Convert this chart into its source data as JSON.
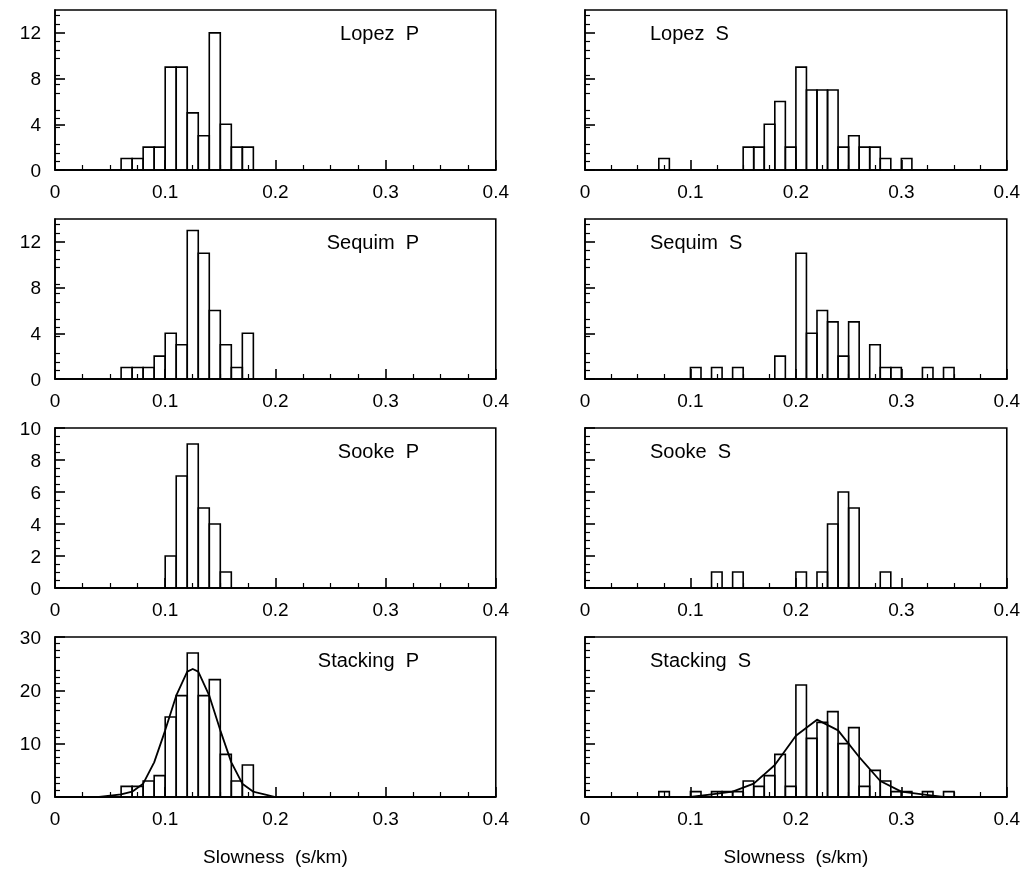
{
  "chart_data": [
    {
      "type": "histogram",
      "title": "Lopez  P",
      "color": "#000000",
      "bins": [
        0,
        0.01,
        0.02,
        0.03,
        0.04,
        0.05,
        0.06,
        0.07,
        0.08,
        0.09,
        0.1,
        0.11,
        0.12,
        0.13,
        0.14,
        0.15,
        0.16,
        0.17,
        0.18,
        0.19,
        0.2,
        0.21,
        0.22,
        0.23,
        0.24,
        0.25,
        0.26,
        0.27,
        0.28,
        0.29,
        0.3,
        0.31,
        0.32,
        0.33,
        0.34,
        0.35,
        0.36,
        0.37,
        0.38,
        0.39,
        0.4
      ],
      "values": [
        0,
        0,
        0,
        0,
        0,
        0,
        1,
        1,
        2,
        2,
        9,
        9,
        5,
        3,
        12,
        4,
        2,
        2,
        0,
        0,
        0,
        0,
        0,
        0,
        0,
        0,
        0,
        0,
        0,
        0,
        0,
        0,
        0,
        0,
        0,
        0,
        0,
        0,
        0,
        0
      ],
      "xlim": [
        0,
        0.4
      ],
      "xticks": [
        0,
        0.1,
        0.2,
        0.3,
        0.4
      ],
      "ylim": [
        0,
        14
      ],
      "yticks": [
        0,
        4,
        8,
        12
      ]
    },
    {
      "type": "histogram",
      "title": "Lopez  S",
      "color": "#000000",
      "bins": [
        0,
        0.01,
        0.02,
        0.03,
        0.04,
        0.05,
        0.06,
        0.07,
        0.08,
        0.09,
        0.1,
        0.11,
        0.12,
        0.13,
        0.14,
        0.15,
        0.16,
        0.17,
        0.18,
        0.19,
        0.2,
        0.21,
        0.22,
        0.23,
        0.24,
        0.25,
        0.26,
        0.27,
        0.28,
        0.29,
        0.3,
        0.31,
        0.32,
        0.33,
        0.34,
        0.35,
        0.36,
        0.37,
        0.38,
        0.39,
        0.4
      ],
      "values": [
        0,
        0,
        0,
        0,
        0,
        0,
        0,
        1,
        0,
        0,
        0,
        0,
        0,
        0,
        0,
        2,
        2,
        4,
        6,
        2,
        9,
        7,
        7,
        7,
        2,
        3,
        2,
        2,
        1,
        0,
        1,
        0,
        0,
        0,
        0,
        0,
        0,
        0,
        0,
        0
      ],
      "xlim": [
        0,
        0.4
      ],
      "xticks": [
        0,
        0.1,
        0.2,
        0.3,
        0.4
      ],
      "ylim": [
        0,
        14
      ],
      "yticks": [
        0,
        4,
        8,
        12
      ],
      "tick_labels": "x"
    },
    {
      "type": "histogram",
      "title": "Sequim  P",
      "color": "#000000",
      "bins": [
        0,
        0.01,
        0.02,
        0.03,
        0.04,
        0.05,
        0.06,
        0.07,
        0.08,
        0.09,
        0.1,
        0.11,
        0.12,
        0.13,
        0.14,
        0.15,
        0.16,
        0.17,
        0.18,
        0.19,
        0.2,
        0.21,
        0.22,
        0.23,
        0.24,
        0.25,
        0.26,
        0.27,
        0.28,
        0.29,
        0.3,
        0.31,
        0.32,
        0.33,
        0.34,
        0.35,
        0.36,
        0.37,
        0.38,
        0.39,
        0.4
      ],
      "values": [
        0,
        0,
        0,
        0,
        0,
        0,
        1,
        1,
        1,
        2,
        4,
        3,
        13,
        11,
        6,
        3,
        1,
        4,
        0,
        0,
        0,
        0,
        0,
        0,
        0,
        0,
        0,
        0,
        0,
        0,
        0,
        0,
        0,
        0,
        0,
        0,
        0,
        0,
        0,
        0
      ],
      "xlim": [
        0,
        0.4
      ],
      "xticks": [
        0,
        0.1,
        0.2,
        0.3,
        0.4
      ],
      "ylim": [
        0,
        14
      ],
      "yticks": [
        0,
        4,
        8,
        12
      ]
    },
    {
      "type": "histogram",
      "title": "Sequim  S",
      "color": "#000000",
      "bins": [
        0,
        0.01,
        0.02,
        0.03,
        0.04,
        0.05,
        0.06,
        0.07,
        0.08,
        0.09,
        0.1,
        0.11,
        0.12,
        0.13,
        0.14,
        0.15,
        0.16,
        0.17,
        0.18,
        0.19,
        0.2,
        0.21,
        0.22,
        0.23,
        0.24,
        0.25,
        0.26,
        0.27,
        0.28,
        0.29,
        0.3,
        0.31,
        0.32,
        0.33,
        0.34,
        0.35,
        0.36,
        0.37,
        0.38,
        0.39,
        0.4
      ],
      "values": [
        0,
        0,
        0,
        0,
        0,
        0,
        0,
        0,
        0,
        0,
        1,
        0,
        1,
        0,
        1,
        0,
        0,
        0,
        2,
        0,
        11,
        4,
        6,
        5,
        2,
        5,
        0,
        3,
        1,
        1,
        0,
        0,
        1,
        0,
        1,
        0,
        0,
        0,
        0,
        0
      ],
      "xlim": [
        0,
        0.4
      ],
      "xticks": [
        0,
        0.1,
        0.2,
        0.3,
        0.4
      ],
      "ylim": [
        0,
        14
      ],
      "yticks": [
        0,
        4,
        8,
        12
      ],
      "tick_labels": "x"
    },
    {
      "type": "histogram",
      "title": "Sooke  P",
      "color": "#000000",
      "bins": [
        0,
        0.01,
        0.02,
        0.03,
        0.04,
        0.05,
        0.06,
        0.07,
        0.08,
        0.09,
        0.1,
        0.11,
        0.12,
        0.13,
        0.14,
        0.15,
        0.16,
        0.17,
        0.18,
        0.19,
        0.2,
        0.21,
        0.22,
        0.23,
        0.24,
        0.25,
        0.26,
        0.27,
        0.28,
        0.29,
        0.3,
        0.31,
        0.32,
        0.33,
        0.34,
        0.35,
        0.36,
        0.37,
        0.38,
        0.39,
        0.4
      ],
      "values": [
        0,
        0,
        0,
        0,
        0,
        0,
        0,
        0,
        0,
        0,
        2,
        7,
        9,
        5,
        4,
        1,
        0,
        0,
        0,
        0,
        0,
        0,
        0,
        0,
        0,
        0,
        0,
        0,
        0,
        0,
        0,
        0,
        0,
        0,
        0,
        0,
        0,
        0,
        0,
        0
      ],
      "xlim": [
        0,
        0.4
      ],
      "xticks": [
        0,
        0.1,
        0.2,
        0.3,
        0.4
      ],
      "ylim": [
        0,
        10
      ],
      "yticks": [
        0,
        2,
        4,
        6,
        8,
        10
      ]
    },
    {
      "type": "histogram",
      "title": "Sooke  S",
      "color": "#000000",
      "bins": [
        0,
        0.01,
        0.02,
        0.03,
        0.04,
        0.05,
        0.06,
        0.07,
        0.08,
        0.09,
        0.1,
        0.11,
        0.12,
        0.13,
        0.14,
        0.15,
        0.16,
        0.17,
        0.18,
        0.19,
        0.2,
        0.21,
        0.22,
        0.23,
        0.24,
        0.25,
        0.26,
        0.27,
        0.28,
        0.29,
        0.3,
        0.31,
        0.32,
        0.33,
        0.34,
        0.35,
        0.36,
        0.37,
        0.38,
        0.39,
        0.4
      ],
      "values": [
        0,
        0,
        0,
        0,
        0,
        0,
        0,
        0,
        0,
        0,
        0,
        0,
        1,
        0,
        1,
        0,
        0,
        0,
        0,
        0,
        1,
        0,
        1,
        4,
        6,
        5,
        0,
        0,
        1,
        0,
        0,
        0,
        0,
        0,
        0,
        0,
        0,
        0,
        0,
        0
      ],
      "xlim": [
        0,
        0.4
      ],
      "xticks": [
        0,
        0.1,
        0.2,
        0.3,
        0.4
      ],
      "ylim": [
        0,
        10
      ],
      "yticks": [
        0,
        2,
        4,
        6,
        8,
        10
      ],
      "tick_labels": "x"
    },
    {
      "type": "histogram",
      "title": "Stacking  P",
      "xlabel": "Slowness  (s/km)",
      "color": "#000000",
      "bins": [
        0,
        0.01,
        0.02,
        0.03,
        0.04,
        0.05,
        0.06,
        0.07,
        0.08,
        0.09,
        0.1,
        0.11,
        0.12,
        0.13,
        0.14,
        0.15,
        0.16,
        0.17,
        0.18,
        0.19,
        0.2,
        0.21,
        0.22,
        0.23,
        0.24,
        0.25,
        0.26,
        0.27,
        0.28,
        0.29,
        0.3,
        0.31,
        0.32,
        0.33,
        0.34,
        0.35,
        0.36,
        0.37,
        0.38,
        0.39,
        0.4
      ],
      "series": [
        {
          "type": "histogram",
          "values": [
            0,
            0,
            0,
            0,
            0,
            0,
            2,
            2,
            3,
            4,
            15,
            19,
            27,
            19,
            22,
            8,
            3,
            6,
            0,
            0,
            0,
            0,
            0,
            0,
            0,
            0,
            0,
            0,
            0,
            0,
            0,
            0,
            0,
            0,
            0,
            0,
            0,
            0,
            0,
            0
          ]
        },
        {
          "type": "line",
          "color": "#000000",
          "x": [
            0,
            0.04,
            0.06,
            0.07,
            0.08,
            0.09,
            0.1,
            0.11,
            0.12,
            0.125,
            0.13,
            0.14,
            0.15,
            0.16,
            0.17,
            0.18,
            0.19,
            0.2,
            0.4
          ],
          "values": [
            0,
            0,
            0.5,
            1,
            2.5,
            6.5,
            12.5,
            19,
            23.5,
            24,
            23.5,
            19,
            12.5,
            6.5,
            2.5,
            1,
            0.5,
            0,
            0
          ]
        }
      ],
      "xlim": [
        0,
        0.4
      ],
      "xticks": [
        0,
        0.1,
        0.2,
        0.3,
        0.4
      ],
      "ylim": [
        0,
        30
      ],
      "yticks": [
        0,
        10,
        20,
        30
      ]
    },
    {
      "type": "histogram",
      "title": "Stacking  S",
      "xlabel": "Slowness  (s/km)",
      "color": "#000000",
      "bins": [
        0,
        0.01,
        0.02,
        0.03,
        0.04,
        0.05,
        0.06,
        0.07,
        0.08,
        0.09,
        0.1,
        0.11,
        0.12,
        0.13,
        0.14,
        0.15,
        0.16,
        0.17,
        0.18,
        0.19,
        0.2,
        0.21,
        0.22,
        0.23,
        0.24,
        0.25,
        0.26,
        0.27,
        0.28,
        0.29,
        0.3,
        0.31,
        0.32,
        0.33,
        0.34,
        0.35,
        0.36,
        0.37,
        0.38,
        0.39,
        0.4
      ],
      "series": [
        {
          "type": "histogram",
          "values": [
            0,
            0,
            0,
            0,
            0,
            0,
            0,
            1,
            0,
            0,
            1,
            0,
            1,
            1,
            1,
            3,
            2,
            4,
            8,
            2,
            21,
            11,
            14,
            16,
            10,
            13,
            2,
            5,
            3,
            1,
            1,
            0,
            1,
            0,
            1,
            0,
            0,
            0,
            0,
            0
          ]
        },
        {
          "type": "line",
          "color": "#000000",
          "x": [
            0,
            0.08,
            0.1,
            0.12,
            0.14,
            0.16,
            0.18,
            0.2,
            0.22,
            0.24,
            0.26,
            0.28,
            0.3,
            0.32,
            0.34,
            0.36,
            0.4
          ],
          "values": [
            0,
            0,
            0,
            0.5,
            1,
            2.5,
            6,
            11.5,
            14.5,
            12.5,
            7.5,
            3,
            1,
            0.5,
            0,
            0,
            0
          ]
        }
      ],
      "xlim": [
        0,
        0.4
      ],
      "xticks": [
        0,
        0.1,
        0.2,
        0.3,
        0.4
      ],
      "ylim": [
        0,
        30
      ],
      "yticks": [
        0,
        10,
        20,
        30
      ],
      "tick_labels": "x"
    }
  ]
}
